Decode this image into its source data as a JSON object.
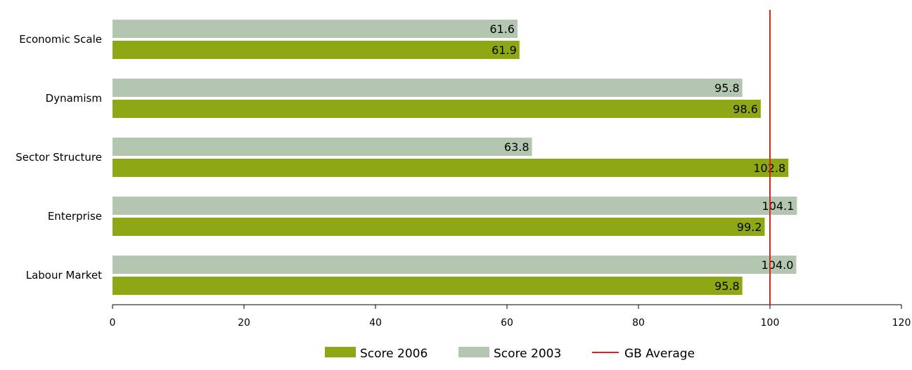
{
  "chart_data": {
    "type": "bar",
    "orientation": "horizontal",
    "title": "",
    "xlabel": "",
    "ylabel": "",
    "categories": [
      "Economic Scale",
      "Dynamism",
      "Sector Structure",
      "Enterprise",
      "Labour Market"
    ],
    "series": [
      {
        "name": "Score 2006",
        "color": "#8ea815",
        "values": [
          61.9,
          98.6,
          102.8,
          99.2,
          95.8
        ],
        "labels": [
          "61.9",
          "98.6",
          "102.8",
          "99.2",
          "95.8"
        ]
      },
      {
        "name": "Score 2003",
        "color": "#b3c6b0",
        "values": [
          61.6,
          95.8,
          63.8,
          104.1,
          104.0
        ],
        "labels": [
          "61.6",
          "95.8",
          "63.8",
          "104.1",
          "104.0"
        ]
      }
    ],
    "reference_line": {
      "name": "GB Average",
      "value": 100,
      "color": "#e1211c"
    },
    "xlim": [
      0,
      120
    ],
    "xticks": [
      0,
      20,
      40,
      60,
      80,
      100,
      120
    ],
    "grid": false,
    "legend_position": "bottom"
  }
}
